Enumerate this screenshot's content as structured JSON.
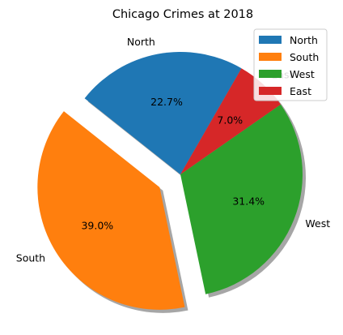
{
  "chart_data": {
    "type": "pie",
    "title": "Chicago Crimes at 2018",
    "categories": [
      "North",
      "South",
      "West",
      "East"
    ],
    "values": [
      22.7,
      39.0,
      31.4,
      7.0
    ],
    "percent_labels": [
      "22.7%",
      "39.0%",
      "31.4%",
      "7.0%"
    ],
    "colors": [
      "#1f77b4",
      "#ff7f0e",
      "#2ca02c",
      "#d62728"
    ],
    "exploded": [
      false,
      true,
      false,
      false
    ],
    "shadow": true,
    "start_angle_deg": 60,
    "legend": {
      "placement": "top-right",
      "entries": [
        "North",
        "South",
        "West",
        "East"
      ]
    }
  }
}
